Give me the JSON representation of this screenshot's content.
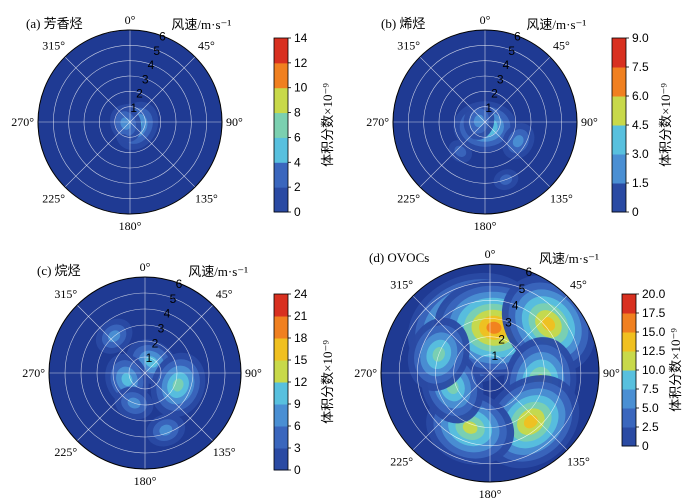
{
  "figure_title": "",
  "polar_axis": {
    "angle_labels": [
      "0°",
      "45°",
      "90°",
      "135°",
      "180°",
      "225°",
      "270°",
      "315°"
    ],
    "radial_labels": [
      "1",
      "2",
      "3",
      "4",
      "5",
      "6"
    ],
    "radial_max": 6,
    "radial_title": "风速/m·s⁻¹"
  },
  "colorbar_label": "体积分数×10⁻⁹",
  "colormap": [
    "#1f3a93",
    "#2a4aa3",
    "#3a66bd",
    "#4a8fd3",
    "#58c0de",
    "#7bd0b0",
    "#c8d94a",
    "#f0c020",
    "#f08020",
    "#d83020",
    "#a01818"
  ],
  "chart_data": [
    {
      "type": "polar-contour",
      "panel_label": "(a) 芳香烃",
      "colorbar_ticks": [
        "0",
        "2",
        "4",
        "6",
        "8",
        "10",
        "12",
        "14"
      ],
      "vmax": 14,
      "hotspots": [
        {
          "direction_deg": 0,
          "wind_speed": 0.2,
          "value": 4
        },
        {
          "direction_deg": 120,
          "wind_speed": 0.5,
          "value": 5
        },
        {
          "direction_deg": 250,
          "wind_speed": 0.3,
          "value": 4
        },
        {
          "direction_deg": 200,
          "wind_speed": 1.2,
          "value": 2
        }
      ]
    },
    {
      "type": "polar-contour",
      "panel_label": "(b) 烯烃",
      "colorbar_ticks": [
        "0",
        "1.5",
        "3.0",
        "4.5",
        "6.0",
        "7.5",
        "9.0"
      ],
      "vmax": 9,
      "hotspots": [
        {
          "direction_deg": 180,
          "wind_speed": 0.3,
          "value": 4.5
        },
        {
          "direction_deg": 120,
          "wind_speed": 2.5,
          "value": 2.5
        },
        {
          "direction_deg": 160,
          "wind_speed": 4,
          "value": 2
        },
        {
          "direction_deg": 220,
          "wind_speed": 2.5,
          "value": 2
        },
        {
          "direction_deg": 280,
          "wind_speed": 0.4,
          "value": 3
        }
      ]
    },
    {
      "type": "polar-contour",
      "panel_label": "(c) 烷烃",
      "colorbar_ticks": [
        "0",
        "3",
        "6",
        "9",
        "12",
        "15",
        "18",
        "21",
        "24"
      ],
      "vmax": 24,
      "hotspots": [
        {
          "direction_deg": 30,
          "wind_speed": 0.8,
          "value": 10
        },
        {
          "direction_deg": 110,
          "wind_speed": 2.2,
          "value": 12
        },
        {
          "direction_deg": 160,
          "wind_speed": 3.8,
          "value": 8
        },
        {
          "direction_deg": 250,
          "wind_speed": 1.2,
          "value": 9
        },
        {
          "direction_deg": 320,
          "wind_speed": 3,
          "value": 6
        },
        {
          "direction_deg": 200,
          "wind_speed": 2,
          "value": 6
        }
      ]
    },
    {
      "type": "polar-contour",
      "panel_label": "(d) OVOCs",
      "colorbar_ticks": [
        "0",
        "2.5",
        "5.0",
        "7.5",
        "10.0",
        "12.5",
        "15.0",
        "17.5",
        "20.0"
      ],
      "vmax": 20,
      "hotspots": [
        {
          "direction_deg": 340,
          "wind_speed": 2.6,
          "value": 18
        },
        {
          "direction_deg": 5,
          "wind_speed": 2.5,
          "value": 16
        },
        {
          "direction_deg": 50,
          "wind_speed": 4.2,
          "value": 13
        },
        {
          "direction_deg": 100,
          "wind_speed": 2.8,
          "value": 12
        },
        {
          "direction_deg": 140,
          "wind_speed": 3.5,
          "value": 13
        },
        {
          "direction_deg": 200,
          "wind_speed": 3.2,
          "value": 12
        },
        {
          "direction_deg": 250,
          "wind_speed": 2.2,
          "value": 10
        },
        {
          "direction_deg": 290,
          "wind_speed": 3,
          "value": 9
        }
      ]
    }
  ]
}
